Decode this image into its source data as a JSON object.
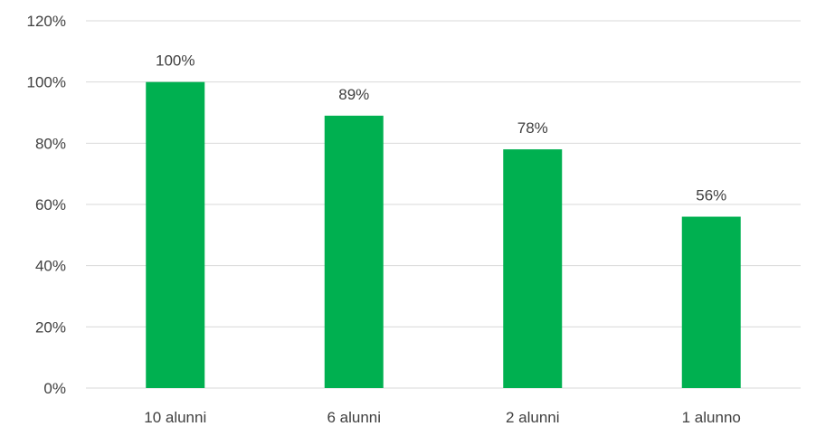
{
  "chart_data": {
    "type": "bar",
    "title": "",
    "xlabel": "",
    "ylabel": "",
    "categories": [
      "10 alunni",
      "6 alunni",
      "2 alunni",
      "1 alunno"
    ],
    "values": [
      100,
      89,
      78,
      56
    ],
    "data_labels": [
      "100%",
      "89%",
      "78%",
      "56%"
    ],
    "ylim": [
      0,
      120
    ],
    "yticks": [
      0,
      20,
      40,
      60,
      80,
      100,
      120
    ],
    "ytick_labels": [
      "0%",
      "20%",
      "40%",
      "60%",
      "80%",
      "100%",
      "120%"
    ],
    "bar_color": "#00b050",
    "grid": true,
    "legend": "none"
  }
}
